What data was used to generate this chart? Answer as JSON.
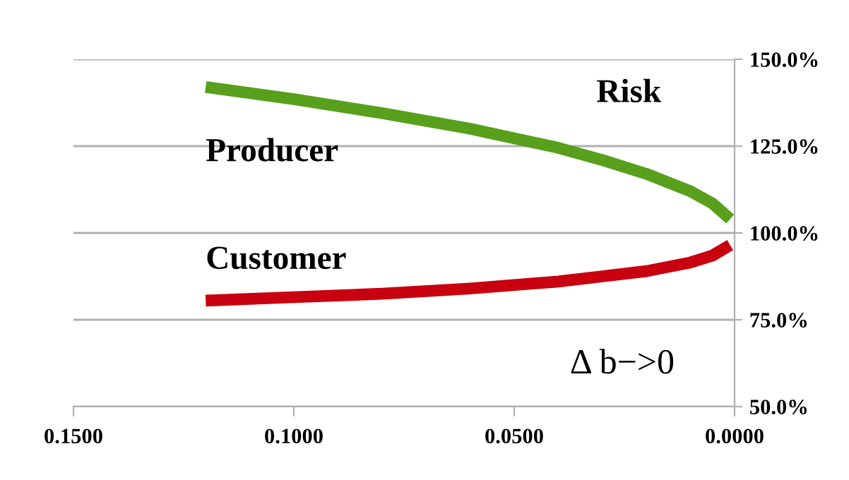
{
  "chart_data": {
    "type": "line",
    "x": [
      0.12,
      0.1,
      0.08,
      0.06,
      0.04,
      0.03,
      0.02,
      0.01,
      0.005,
      0.001
    ],
    "series": [
      {
        "name": "Producer",
        "color": "#58a01c",
        "values": [
          142,
          138.5,
          134.5,
          130,
          124.5,
          121,
          117,
          112,
          108.5,
          104
        ]
      },
      {
        "name": "Customer",
        "color": "#c8000f",
        "values": [
          80.5,
          81.5,
          82.5,
          84,
          86,
          87.5,
          89,
          91.5,
          93.5,
          96.5
        ]
      }
    ],
    "xlim": [
      0.15,
      0
    ],
    "xticks": [
      {
        "value": 0.15,
        "label": "0.1500"
      },
      {
        "value": 0.1,
        "label": "0.1000"
      },
      {
        "value": 0.05,
        "label": "0.0500"
      },
      {
        "value": 0,
        "label": "0.0000"
      }
    ],
    "ylim": [
      50,
      150
    ],
    "yticks": [
      {
        "value": 50,
        "label": "50.0%"
      },
      {
        "value": 75,
        "label": "75.0%"
      },
      {
        "value": 100,
        "label": "100.0%"
      },
      {
        "value": 125,
        "label": "125.0%"
      },
      {
        "value": 150,
        "label": "150.0%"
      }
    ],
    "grid": "y",
    "legend": false,
    "marker": "none",
    "line_style": "solid",
    "annotations": [
      "Risk",
      "Δ b−>0"
    ]
  }
}
